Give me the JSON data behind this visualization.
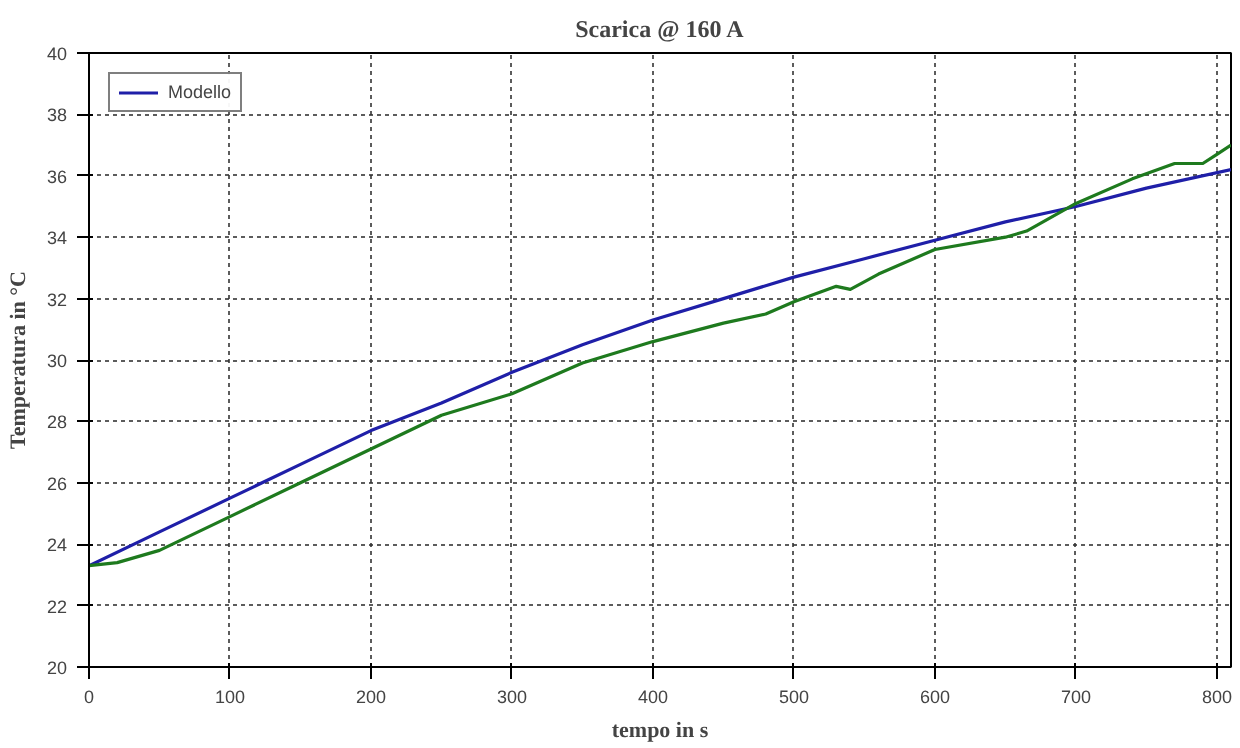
{
  "chart_data": {
    "type": "line",
    "title": "Scarica @ 160 A",
    "xlabel": "tempo in s",
    "ylabel": "Temperatura in °C",
    "xlim": [
      0,
      810
    ],
    "xticks": [
      0,
      100,
      200,
      300,
      400,
      500,
      600,
      700,
      800
    ],
    "ylim": [
      20,
      40
    ],
    "yticks": [
      20,
      22,
      24,
      26,
      28,
      30,
      32,
      34,
      36,
      38,
      40
    ],
    "grid": true,
    "legend": "top left",
    "line_style": "solid",
    "series": [
      {
        "name": "Modello",
        "color": "#1f1fa8",
        "x": [
          0,
          50,
          100,
          150,
          200,
          250,
          300,
          350,
          400,
          450,
          500,
          550,
          600,
          650,
          700,
          750,
          810
        ],
        "values": [
          23.3,
          24.4,
          25.5,
          26.6,
          27.7,
          28.6,
          29.6,
          30.5,
          31.3,
          32.0,
          32.7,
          33.3,
          33.9,
          34.5,
          35.0,
          35.6,
          36.2
        ]
      },
      {
        "color": "#1e7a1e",
        "x": [
          0,
          20,
          50,
          100,
          150,
          200,
          250,
          300,
          350,
          400,
          450,
          480,
          500,
          530,
          540,
          560,
          600,
          650,
          665,
          700,
          740,
          770,
          790,
          800,
          810
        ],
        "values": [
          23.3,
          23.4,
          23.8,
          24.9,
          26.0,
          27.1,
          28.2,
          28.9,
          29.9,
          30.6,
          31.2,
          31.5,
          31.9,
          32.4,
          32.3,
          32.8,
          33.6,
          34.0,
          34.2,
          35.1,
          35.9,
          36.4,
          36.4,
          36.7,
          37.0
        ]
      }
    ]
  }
}
